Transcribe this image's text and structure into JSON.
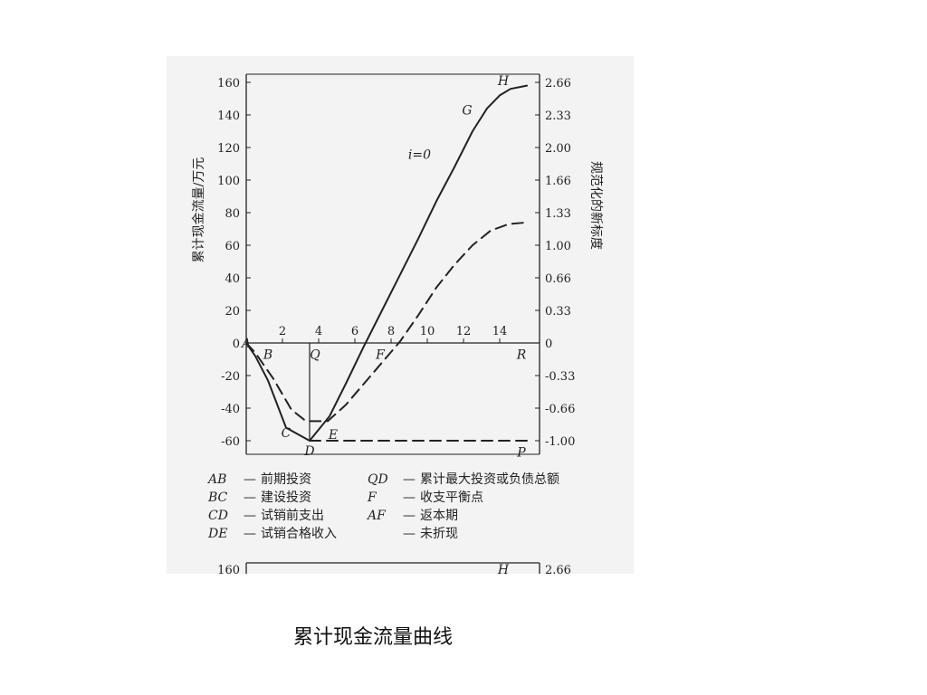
{
  "caption": "累计现金流量曲线",
  "chart_data": {
    "type": "line",
    "ylabel_left": "累计现金流量/万元",
    "ylabel_right": "规范化的新标度",
    "x_ticks": [
      "2",
      "4",
      "6",
      "8",
      "10",
      "12",
      "14"
    ],
    "y_ticks_left": [
      "160",
      "140",
      "120",
      "100",
      "80",
      "60",
      "40",
      "20",
      "0",
      "-20",
      "-40",
      "-60"
    ],
    "y_ticks_right": [
      "2.66",
      "2.33",
      "2.00",
      "1.66",
      "1.33",
      "1.00",
      "0.66",
      "0.33",
      "0",
      "-0.33",
      "-0.66",
      "-1.00"
    ],
    "xlim": [
      0,
      15.5
    ],
    "ylim": [
      -65,
      163
    ],
    "curve_annotation": "i=0",
    "series": [
      {
        "name": "i=0",
        "style": "solid",
        "x": [
          0,
          0.5,
          1.2,
          2.2,
          3.5,
          4.6,
          5.5,
          6.5,
          7.5,
          8.5,
          9.5,
          10.5,
          11.5,
          12.5,
          13.3,
          14,
          14.6,
          15.5
        ],
        "y": [
          0,
          -8,
          -23,
          -52,
          -60,
          -45,
          -25,
          -2,
          20,
          42,
          64,
          87,
          108,
          130,
          144,
          152,
          156,
          158
        ]
      },
      {
        "style": "dashed",
        "x": [
          0,
          0.5,
          1.5,
          2.5,
          3.3,
          4.5,
          5.5,
          6.5,
          7.5,
          8.5,
          9.5,
          10.5,
          11.5,
          12.5,
          13.5,
          14.5,
          15.5
        ],
        "y": [
          0,
          -6,
          -22,
          -41,
          -48,
          -48,
          -38,
          -25,
          -12,
          1,
          17,
          34,
          48,
          60,
          69,
          73,
          74
        ]
      },
      {
        "style": "dashed",
        "x": [
          3.5,
          15.5
        ],
        "y": [
          -60,
          -60
        ]
      }
    ],
    "points": [
      {
        "label": "A",
        "x": 0,
        "y": 0
      },
      {
        "label": "B",
        "x": 1.2,
        "y": -7
      },
      {
        "label": "C",
        "x": 2.2,
        "y": -55
      },
      {
        "label": "D",
        "x": 3.5,
        "y": -66
      },
      {
        "label": "E",
        "x": 4.8,
        "y": -56
      },
      {
        "label": "F",
        "x": 7.4,
        "y": -7
      },
      {
        "label": "Q",
        "x": 3.8,
        "y": -7
      },
      {
        "label": "R",
        "x": 15.2,
        "y": -7
      },
      {
        "label": "P",
        "x": 15.2,
        "y": -67
      },
      {
        "label": "G",
        "x": 12.2,
        "y": 143
      },
      {
        "label": "H",
        "x": 14.2,
        "y": 161
      }
    ],
    "grid": false
  },
  "legend": {
    "left": [
      {
        "key": "AB",
        "text": "前期投资"
      },
      {
        "key": "BC",
        "text": "建设投资"
      },
      {
        "key": "CD",
        "text": "试销前支出"
      },
      {
        "key": "DE",
        "text": "试销合格收入"
      }
    ],
    "right": [
      {
        "key": "QD",
        "text": "累计最大投资或负债总额"
      },
      {
        "key": "F",
        "text": "收支平衡点"
      },
      {
        "key": "AF",
        "text": "返本期"
      },
      {
        "key": "",
        "text": "未折现"
      }
    ]
  },
  "next_panel": {
    "left_tick": "160",
    "point_label": "H",
    "right_tick": "2.66"
  }
}
